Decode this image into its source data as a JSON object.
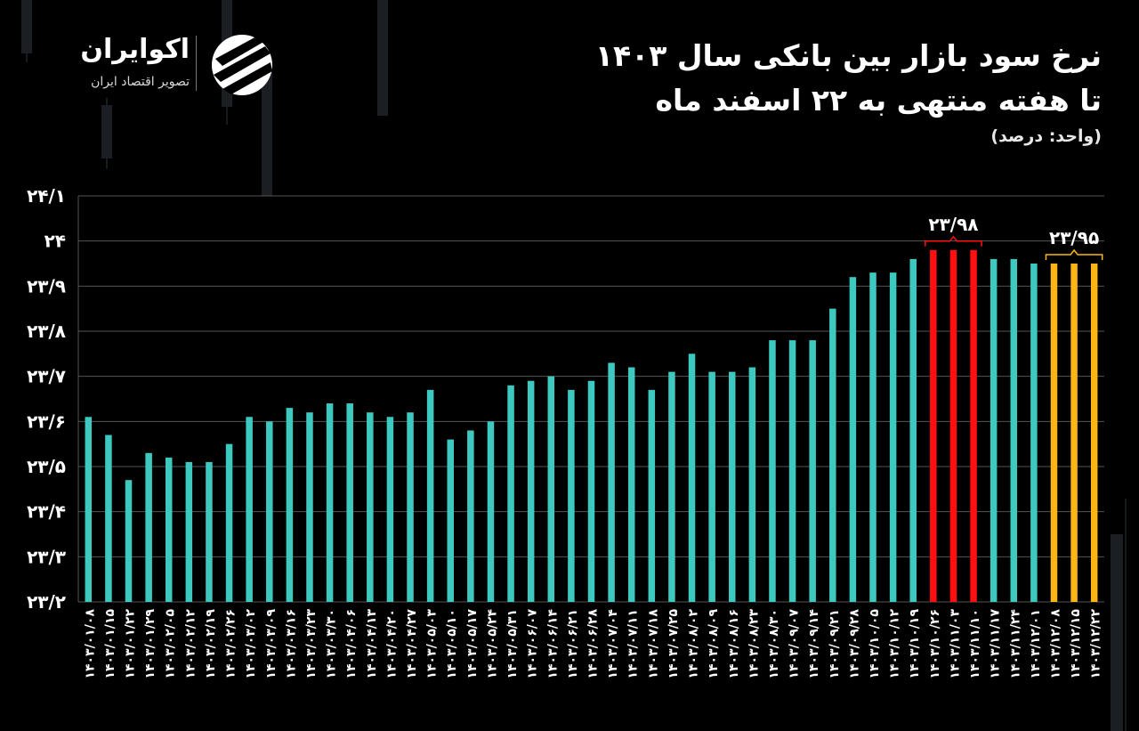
{
  "title_lines": [
    "نرخ سود بازار بین بانکی سال ۱۴۰۳",
    "تا هفته منتهی به ۲۲ اسفند ماه"
  ],
  "unit_label": "(واحد: درصد)",
  "brand": {
    "name": "اکوایران",
    "tagline": "تصویر اقتصاد ایران"
  },
  "colors": {
    "default": "#3ec9c0",
    "max": "#ff0f0f",
    "last": "#fdb515",
    "grid": "#555555",
    "background": "#000000"
  },
  "chart_data": {
    "type": "bar",
    "title": "نرخ سود بازار بین بانکی سال ۱۴۰۳ تا هفته منتهی به ۲۲ اسفند ماه",
    "ylabel": "(واحد: درصد)",
    "xlabel": "",
    "ylim": [
      23.2,
      24.1
    ],
    "yticks": [
      {
        "value": 23.2,
        "label": "۲۳/۲"
      },
      {
        "value": 23.3,
        "label": "۲۳/۳"
      },
      {
        "value": 23.4,
        "label": "۲۳/۴"
      },
      {
        "value": 23.5,
        "label": "۲۳/۵"
      },
      {
        "value": 23.6,
        "label": "۲۳/۶"
      },
      {
        "value": 23.7,
        "label": "۲۳/۷"
      },
      {
        "value": 23.8,
        "label": "۲۳/۸"
      },
      {
        "value": 23.9,
        "label": "۲۳/۹"
      },
      {
        "value": 24.0,
        "label": "۲۴"
      },
      {
        "value": 24.1,
        "label": "۲۴/۱"
      }
    ],
    "grid": true,
    "legend": "none",
    "categories": [
      "۱۴۰۳/۰۱/۰۸",
      "۱۴۰۳/۰۱/۱۵",
      "۱۴۰۳/۰۱/۲۲",
      "۱۴۰۳/۰۱/۲۹",
      "۱۴۰۳/۰۲/۰۵",
      "۱۴۰۳/۰۲/۱۲",
      "۱۴۰۳/۰۲/۱۹",
      "۱۴۰۳/۰۲/۲۶",
      "۱۴۰۳/۰۳/۰۲",
      "۱۴۰۳/۰۳/۰۹",
      "۱۴۰۳/۰۳/۱۶",
      "۱۴۰۳/۰۳/۲۳",
      "۱۴۰۳/۰۳/۳۰",
      "۱۴۰۳/۰۴/۰۶",
      "۱۴۰۳/۰۴/۱۳",
      "۱۴۰۳/۰۴/۲۰",
      "۱۴۰۳/۰۴/۲۷",
      "۱۴۰۳/۰۵/۰۳",
      "۱۴۰۳/۰۵/۱۰",
      "۱۴۰۳/۰۵/۱۷",
      "۱۴۰۳/۰۵/۲۴",
      "۱۴۰۳/۰۵/۳۱",
      "۱۴۰۳/۰۶/۰۷",
      "۱۴۰۳/۰۶/۱۴",
      "۱۴۰۳/۰۶/۲۱",
      "۱۴۰۳/۰۶/۲۸",
      "۱۴۰۳/۰۷/۰۴",
      "۱۴۰۳/۰۷/۱۱",
      "۱۴۰۳/۰۷/۱۸",
      "۱۴۰۳/۰۷/۲۵",
      "۱۴۰۳/۰۸/۰۲",
      "۱۴۰۳/۰۸/۰۹",
      "۱۴۰۳/۰۸/۱۶",
      "۱۴۰۳/۰۸/۲۳",
      "۱۴۰۳/۰۸/۳۰",
      "۱۴۰۳/۰۹/۰۷",
      "۱۴۰۳/۰۹/۱۴",
      "۱۴۰۳/۰۹/۲۱",
      "۱۴۰۳/۰۹/۲۸",
      "۱۴۰۳/۱۰/۰۵",
      "۱۴۰۳/۱۰/۱۲",
      "۱۴۰۳/۱۰/۱۹",
      "۱۴۰۳/۱۰/۲۶",
      "۱۴۰۳/۱۱/۰۳",
      "۱۴۰۳/۱۱/۱۰",
      "۱۴۰۳/۱۱/۱۷",
      "۱۴۰۳/۱۱/۲۴",
      "۱۴۰۳/۱۲/۰۱",
      "۱۴۰۳/۱۲/۰۸",
      "۱۴۰۳/۱۲/۱۵",
      "۱۴۰۳/۱۲/۲۲"
    ],
    "values": [
      23.61,
      23.57,
      23.47,
      23.53,
      23.52,
      23.51,
      23.51,
      23.55,
      23.61,
      23.6,
      23.63,
      23.62,
      23.64,
      23.64,
      23.62,
      23.61,
      23.62,
      23.67,
      23.56,
      23.58,
      23.6,
      23.68,
      23.69,
      23.7,
      23.67,
      23.69,
      23.73,
      23.72,
      23.67,
      23.71,
      23.75,
      23.71,
      23.71,
      23.72,
      23.78,
      23.78,
      23.78,
      23.85,
      23.92,
      23.93,
      23.93,
      23.96,
      23.98,
      23.98,
      23.98,
      23.96,
      23.96,
      23.95,
      23.95,
      23.95,
      23.95
    ],
    "highlights": [
      {
        "label": "۲۳/۹۸",
        "start": 42,
        "end": 44,
        "color": "max"
      },
      {
        "label": "۲۳/۹۵",
        "start": 48,
        "end": 50,
        "color": "last"
      }
    ]
  }
}
